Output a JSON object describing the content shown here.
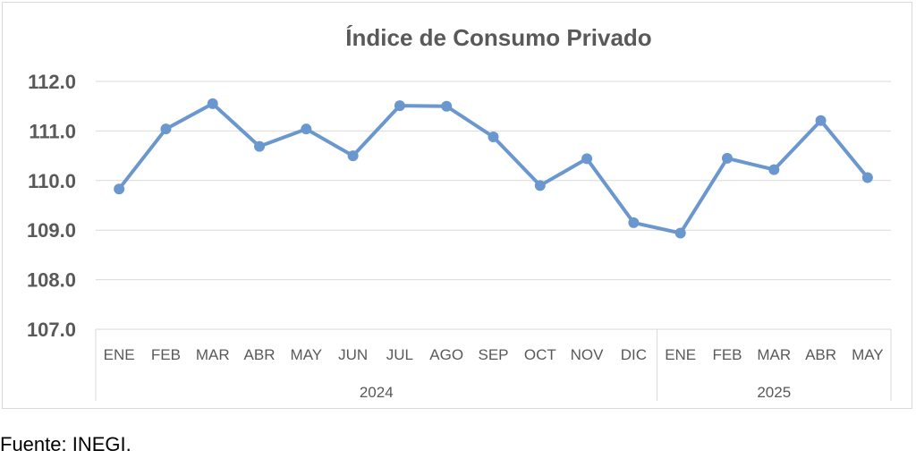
{
  "source_note": "Fuente: INEGI.",
  "colors": {
    "series": "#6b97cf",
    "grid": "#d9d9d9",
    "axis_text": "#595959"
  },
  "chart_data": {
    "type": "line",
    "title": "Índice de Consumo Privado",
    "xlabel": "",
    "ylabel": "",
    "ylim": [
      107.0,
      112.0
    ],
    "y_ticks": [
      "107.0",
      "108.0",
      "109.0",
      "110.0",
      "111.0",
      "112.0"
    ],
    "grid": true,
    "legend": "none",
    "categories": [
      "ENE",
      "FEB",
      "MAR",
      "ABR",
      "MAY",
      "JUN",
      "JUL",
      "AGO",
      "SEP",
      "OCT",
      "NOV",
      "DIC",
      "ENE",
      "FEB",
      "MAR",
      "ABR",
      "MAY"
    ],
    "groups": [
      {
        "label": "2024",
        "count": 12
      },
      {
        "label": "2025",
        "count": 5
      }
    ],
    "series": [
      {
        "values": [
          109.83,
          111.04,
          111.55,
          110.69,
          111.04,
          110.5,
          111.51,
          111.5,
          110.88,
          109.9,
          110.44,
          109.15,
          108.94,
          110.45,
          110.22,
          111.21,
          110.06
        ]
      }
    ]
  }
}
